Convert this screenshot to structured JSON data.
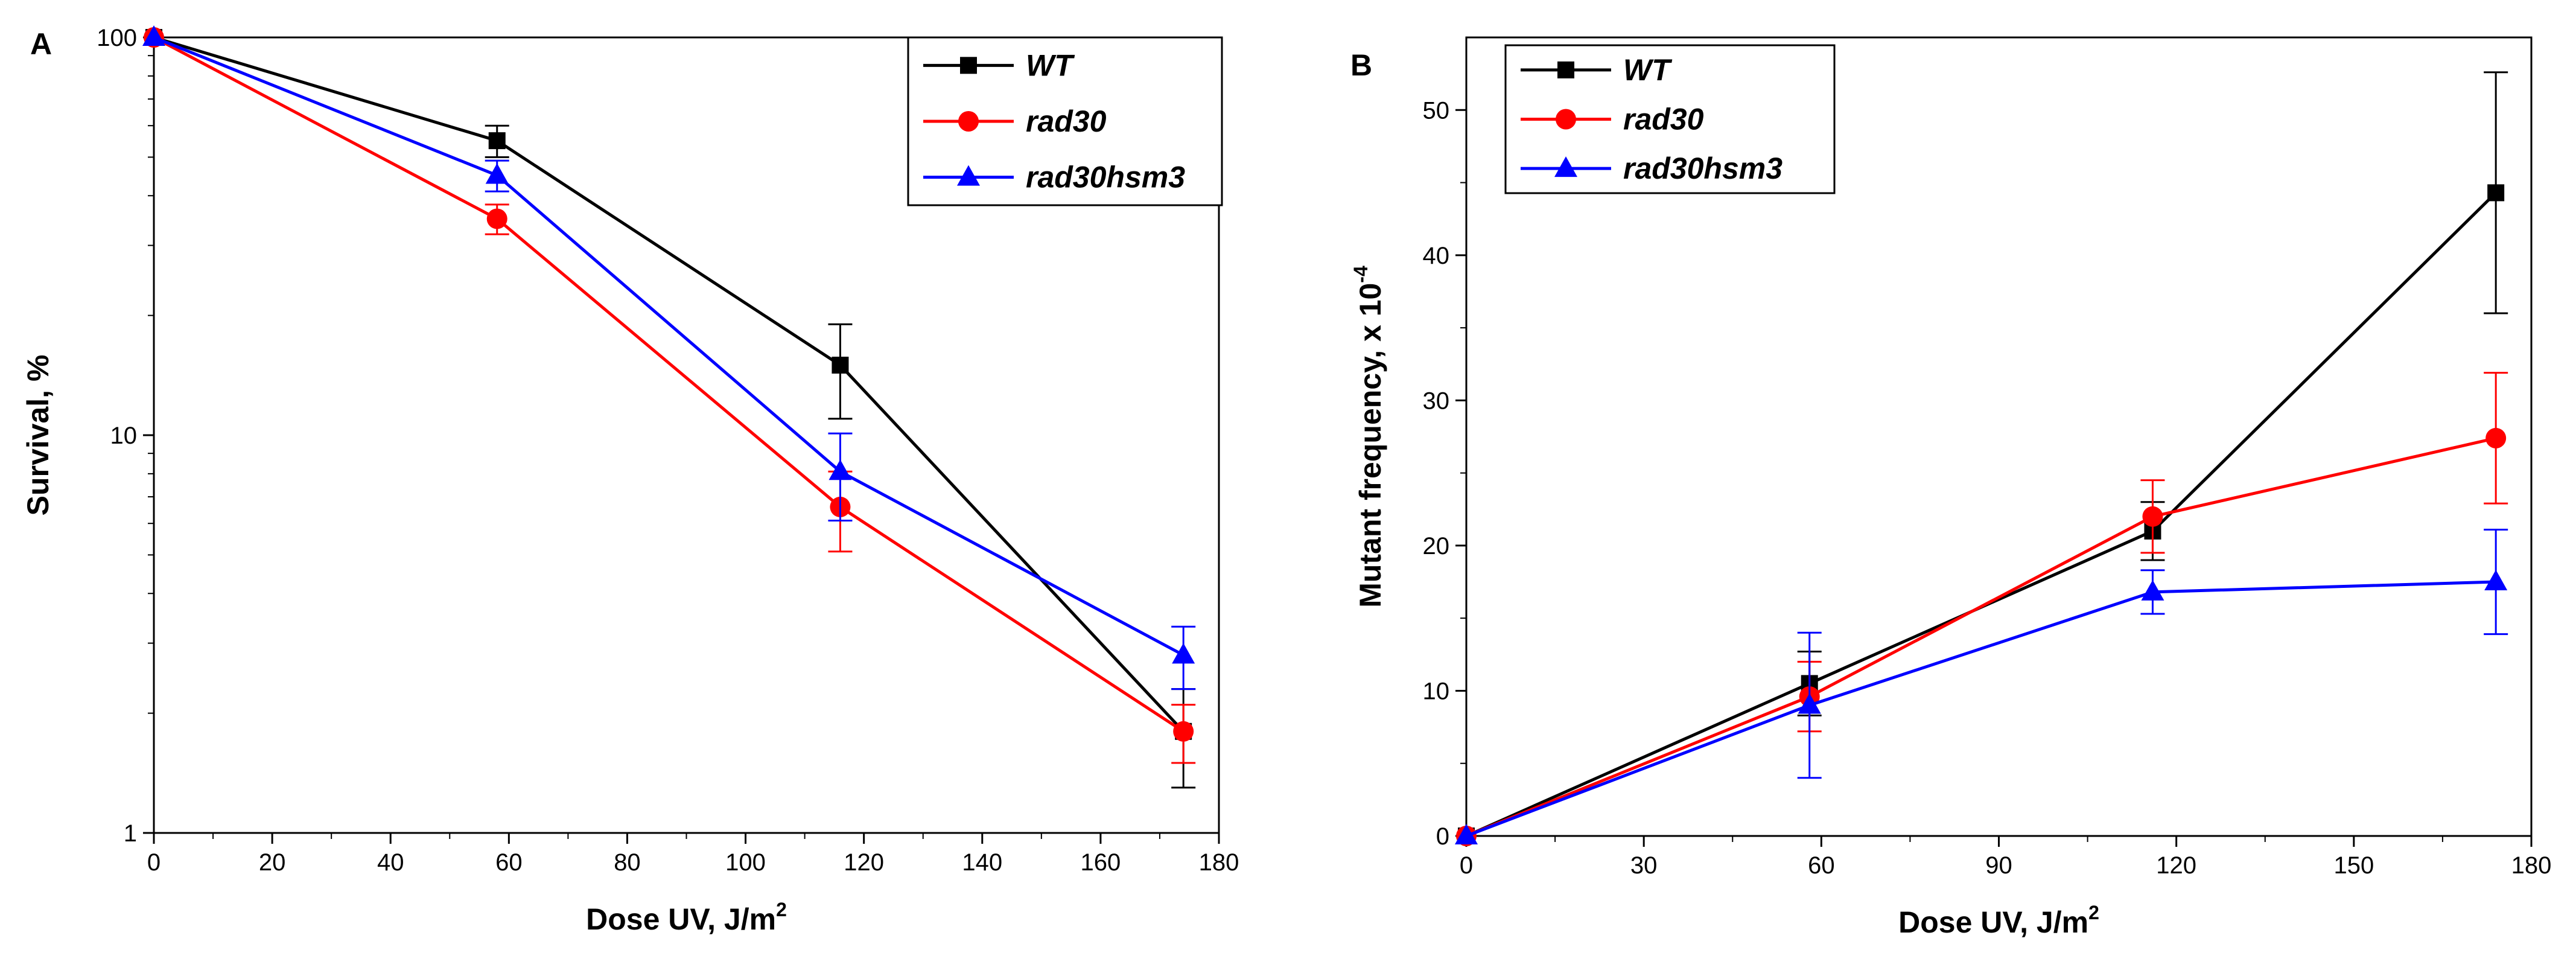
{
  "chart_data": [
    {
      "panel": "A",
      "type": "line",
      "yscale": "log",
      "xlabel": "Dose UV, J/m",
      "xlabel_sup": "2",
      "ylabel": "Survival, %",
      "xlim": [
        0,
        180
      ],
      "ylim": [
        1,
        100
      ],
      "xticks": [
        0,
        20,
        40,
        60,
        80,
        100,
        120,
        140,
        160,
        180
      ],
      "yticks": [
        1,
        10,
        100
      ],
      "legend_position": "top-right",
      "series": [
        {
          "name": "WT",
          "color": "#000000",
          "marker": "square",
          "x": [
            0,
            58,
            116,
            174
          ],
          "y": [
            100,
            55,
            15,
            1.8
          ],
          "err": [
            0,
            5,
            4,
            0.5
          ]
        },
        {
          "name": "rad30",
          "color": "#ff0000",
          "marker": "circle",
          "x": [
            0,
            58,
            116,
            174
          ],
          "y": [
            100,
            35,
            6.6,
            1.8
          ],
          "err": [
            0,
            3,
            1.5,
            0.3
          ]
        },
        {
          "name": "rad30hsm3",
          "color": "#0000ff",
          "marker": "triangle",
          "x": [
            0,
            58,
            116,
            174
          ],
          "y": [
            100,
            45,
            8.1,
            2.8
          ],
          "err": [
            0,
            4,
            2,
            0.5
          ]
        }
      ]
    },
    {
      "panel": "B",
      "type": "line",
      "yscale": "linear",
      "xlabel": "Dose UV, J/m",
      "xlabel_sup": "2",
      "ylabel": "Mutant frequency, x 10",
      "ylabel_sup": "-4",
      "xlim": [
        0,
        180
      ],
      "ylim": [
        0,
        55
      ],
      "xticks": [
        0,
        30,
        60,
        90,
        120,
        150,
        180
      ],
      "yticks": [
        0,
        10,
        20,
        30,
        40,
        50
      ],
      "legend_position": "top-left",
      "series": [
        {
          "name": "WT",
          "color": "#000000",
          "marker": "square",
          "x": [
            0,
            58,
            116,
            174
          ],
          "y": [
            0,
            10.5,
            21,
            44.3
          ],
          "err": [
            0,
            2.2,
            2,
            8.3
          ]
        },
        {
          "name": "rad30",
          "color": "#ff0000",
          "marker": "circle",
          "x": [
            0,
            58,
            116,
            174
          ],
          "y": [
            0,
            9.6,
            22,
            27.4
          ],
          "err": [
            0,
            2.4,
            2.5,
            4.5
          ]
        },
        {
          "name": "rad30hsm3",
          "color": "#0000ff",
          "marker": "triangle",
          "x": [
            0,
            58,
            116,
            174
          ],
          "y": [
            0,
            9,
            16.8,
            17.5
          ],
          "err": [
            0,
            5,
            1.5,
            3.6
          ]
        }
      ]
    }
  ]
}
